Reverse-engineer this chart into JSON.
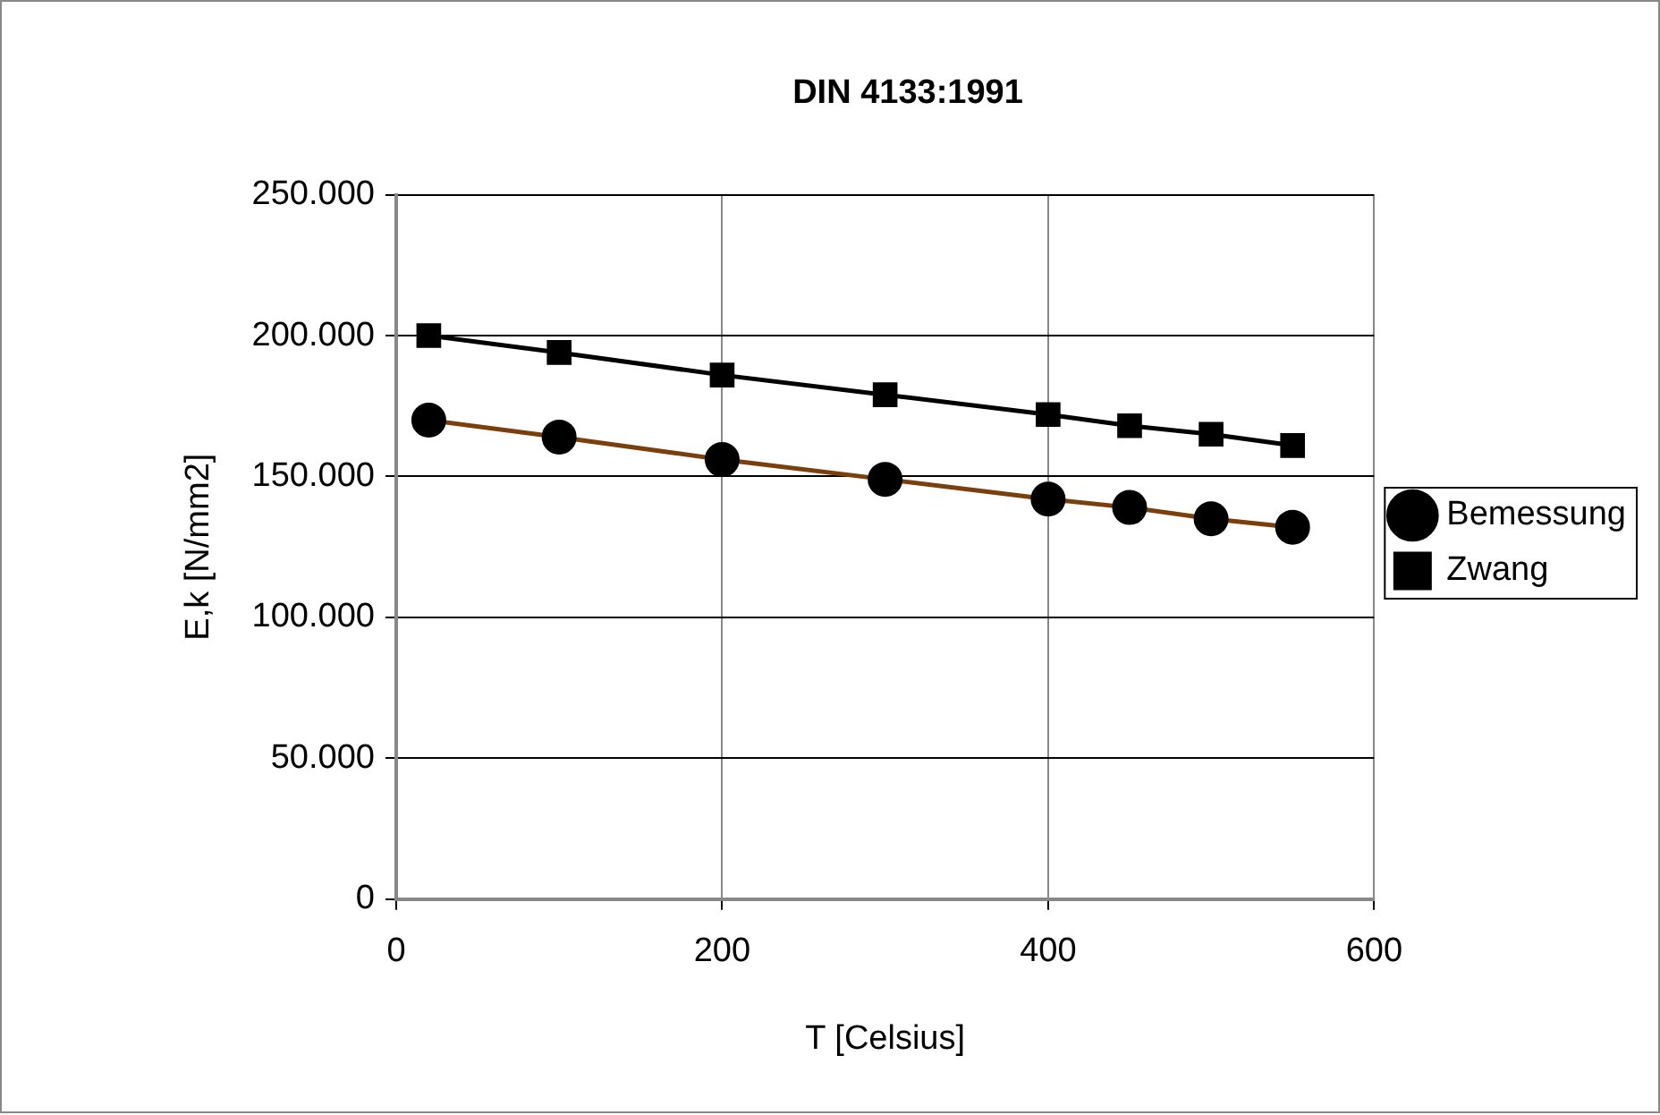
{
  "chart_data": {
    "type": "line",
    "title": "DIN 4133:1991",
    "xlabel": "T [Celsius]",
    "ylabel": "E,k [N/mm2]",
    "x": [
      20,
      100,
      200,
      300,
      400,
      450,
      500,
      550
    ],
    "series": [
      {
        "name": "Bemessung",
        "color": "#7a3f0a",
        "marker": "circle",
        "values": [
          170000,
          164000,
          156000,
          149000,
          142000,
          139000,
          135000,
          132000
        ]
      },
      {
        "name": "Zwang",
        "color": "#000000",
        "marker": "square",
        "values": [
          200000,
          194000,
          186000,
          179000,
          172000,
          168000,
          165000,
          161000
        ]
      }
    ],
    "xlim": [
      0,
      600
    ],
    "xticks": [
      0,
      200,
      400,
      600
    ],
    "ylim": [
      0,
      250000
    ],
    "yticks": [
      0,
      {
        "value": 50000,
        "label": "50.000"
      },
      {
        "value": 100000,
        "label": "100.000"
      },
      {
        "value": 150000,
        "label": "150.000"
      },
      {
        "value": 200000,
        "label": "200.000"
      },
      {
        "value": 250000,
        "label": "250.000"
      }
    ],
    "grid": true,
    "legend": "right"
  }
}
